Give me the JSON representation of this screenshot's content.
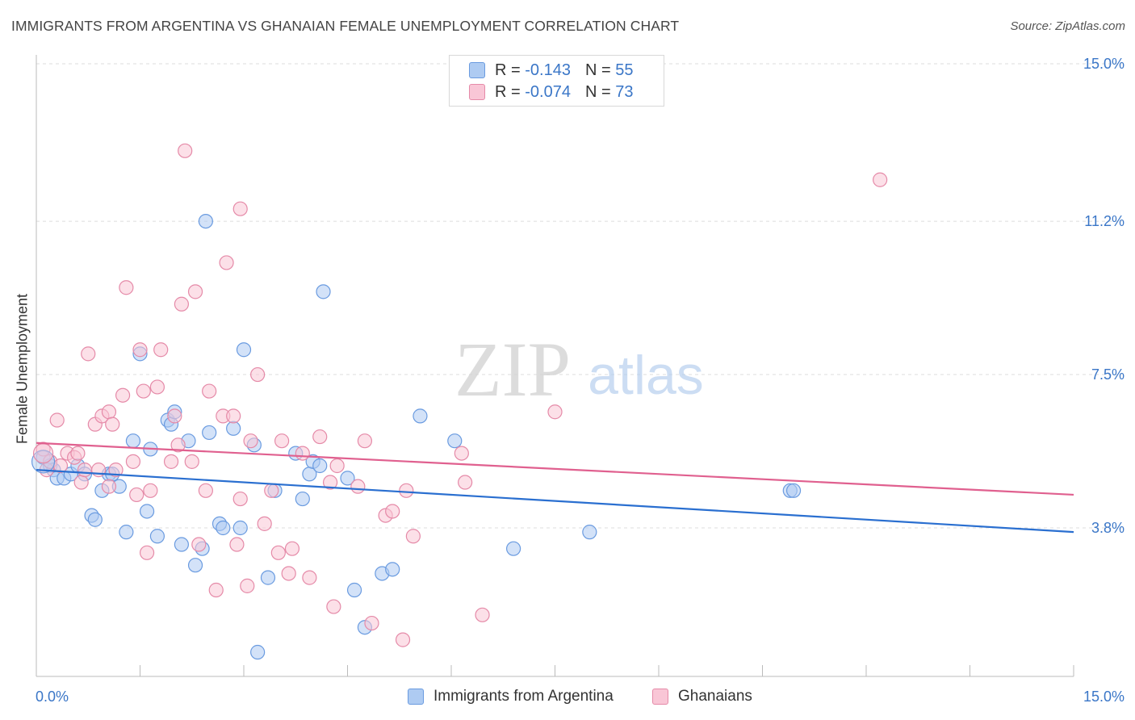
{
  "title": "IMMIGRANTS FROM ARGENTINA VS GHANAIAN FEMALE UNEMPLOYMENT CORRELATION CHART",
  "source": "Source: ZipAtlas.com",
  "watermark": {
    "zip": "ZIP",
    "atlas": "atlas"
  },
  "legend": {
    "rows": [
      {
        "r_label": "R =",
        "r_value": "-0.143",
        "n_label": "N =",
        "n_value": "55",
        "color": "#aecbf2",
        "border": "#6a9be0"
      },
      {
        "r_label": "R =",
        "r_value": "-0.074",
        "n_label": "N =",
        "n_value": "73",
        "color": "#f9c6d6",
        "border": "#e58aa8"
      }
    ]
  },
  "chart_data": {
    "type": "scatter",
    "title": "IMMIGRANTS FROM ARGENTINA VS GHANAIAN FEMALE UNEMPLOYMENT CORRELATION CHART",
    "xlabel": "",
    "ylabel": "Female Unemployment",
    "xlim": [
      0,
      15
    ],
    "ylim": [
      0,
      15.5
    ],
    "x_tick_labels": [
      "0.0%",
      "15.0%"
    ],
    "y_ticks": [
      3.8,
      7.5,
      11.2,
      15.0
    ],
    "y_tick_labels": [
      "3.8%",
      "7.5%",
      "11.2%",
      "15.0%"
    ],
    "grid": true,
    "legend_position": "top-center",
    "series": [
      {
        "name": "Immigrants from Argentina",
        "color": "#6a9be0",
        "fill": "#aecbf2",
        "trend": {
          "x": [
            0,
            15
          ],
          "y": [
            5.2,
            3.7
          ],
          "color": "#2a6fd0"
        },
        "points": [
          [
            0.1,
            5.5
          ],
          [
            0.2,
            5.3
          ],
          [
            0.25,
            5.2
          ],
          [
            0.3,
            5.0
          ],
          [
            0.4,
            5.0
          ],
          [
            0.5,
            5.1
          ],
          [
            0.6,
            5.3
          ],
          [
            0.7,
            5.1
          ],
          [
            0.8,
            4.1
          ],
          [
            0.85,
            4.0
          ],
          [
            0.95,
            4.7
          ],
          [
            1.05,
            5.1
          ],
          [
            1.1,
            5.1
          ],
          [
            1.2,
            4.8
          ],
          [
            1.3,
            3.7
          ],
          [
            1.4,
            5.9
          ],
          [
            1.5,
            8.0
          ],
          [
            1.6,
            4.2
          ],
          [
            1.65,
            5.7
          ],
          [
            1.75,
            3.6
          ],
          [
            1.9,
            6.4
          ],
          [
            1.95,
            6.3
          ],
          [
            2.0,
            6.6
          ],
          [
            2.1,
            3.4
          ],
          [
            2.2,
            5.9
          ],
          [
            2.3,
            2.9
          ],
          [
            2.4,
            3.3
          ],
          [
            2.45,
            11.2
          ],
          [
            2.5,
            6.1
          ],
          [
            2.65,
            3.9
          ],
          [
            2.7,
            3.8
          ],
          [
            2.85,
            6.2
          ],
          [
            2.95,
            3.8
          ],
          [
            3.0,
            8.1
          ],
          [
            3.15,
            5.8
          ],
          [
            3.2,
            0.8
          ],
          [
            3.35,
            2.6
          ],
          [
            3.45,
            4.7
          ],
          [
            3.75,
            5.6
          ],
          [
            3.85,
            4.5
          ],
          [
            3.95,
            5.1
          ],
          [
            4.0,
            5.4
          ],
          [
            4.1,
            5.3
          ],
          [
            4.15,
            9.5
          ],
          [
            4.5,
            5.0
          ],
          [
            4.6,
            2.3
          ],
          [
            4.75,
            1.4
          ],
          [
            5.0,
            2.7
          ],
          [
            5.15,
            2.8
          ],
          [
            5.55,
            6.5
          ],
          [
            6.05,
            5.9
          ],
          [
            6.9,
            3.3
          ],
          [
            8.0,
            3.7
          ],
          [
            10.9,
            4.7
          ],
          [
            10.95,
            4.7
          ]
        ]
      },
      {
        "name": "Ghanaians",
        "color": "#e58aa8",
        "fill": "#f9c6d6",
        "trend": {
          "x": [
            0,
            15
          ],
          "y": [
            5.85,
            4.6
          ],
          "color": "#e0608f"
        },
        "points": [
          [
            0.1,
            5.7
          ],
          [
            0.15,
            5.2
          ],
          [
            0.2,
            5.4
          ],
          [
            0.3,
            6.4
          ],
          [
            0.35,
            5.3
          ],
          [
            0.45,
            5.6
          ],
          [
            0.55,
            5.5
          ],
          [
            0.6,
            5.6
          ],
          [
            0.65,
            4.9
          ],
          [
            0.7,
            5.2
          ],
          [
            0.75,
            8.0
          ],
          [
            0.85,
            6.3
          ],
          [
            0.9,
            5.2
          ],
          [
            0.95,
            6.5
          ],
          [
            1.05,
            6.6
          ],
          [
            1.1,
            6.3
          ],
          [
            1.15,
            5.2
          ],
          [
            1.25,
            7.0
          ],
          [
            1.3,
            9.6
          ],
          [
            1.4,
            5.4
          ],
          [
            1.45,
            4.6
          ],
          [
            1.5,
            8.1
          ],
          [
            1.55,
            7.1
          ],
          [
            1.6,
            3.2
          ],
          [
            1.65,
            4.7
          ],
          [
            1.75,
            7.2
          ],
          [
            1.8,
            8.1
          ],
          [
            1.95,
            5.4
          ],
          [
            2.0,
            6.5
          ],
          [
            2.05,
            5.8
          ],
          [
            2.1,
            9.2
          ],
          [
            2.15,
            12.9
          ],
          [
            2.25,
            5.4
          ],
          [
            2.3,
            9.5
          ],
          [
            2.35,
            3.4
          ],
          [
            2.45,
            4.7
          ],
          [
            2.5,
            7.1
          ],
          [
            2.6,
            2.3
          ],
          [
            2.7,
            6.5
          ],
          [
            2.75,
            10.2
          ],
          [
            2.85,
            6.5
          ],
          [
            2.9,
            3.4
          ],
          [
            2.95,
            11.5
          ],
          [
            3.05,
            2.4
          ],
          [
            3.1,
            5.9
          ],
          [
            3.2,
            7.5
          ],
          [
            3.3,
            3.9
          ],
          [
            3.4,
            4.7
          ],
          [
            3.5,
            3.2
          ],
          [
            3.55,
            5.9
          ],
          [
            3.65,
            2.7
          ],
          [
            3.7,
            3.3
          ],
          [
            3.85,
            5.6
          ],
          [
            3.95,
            2.6
          ],
          [
            4.1,
            6.0
          ],
          [
            4.25,
            4.9
          ],
          [
            4.3,
            1.9
          ],
          [
            4.35,
            5.3
          ],
          [
            4.75,
            5.9
          ],
          [
            4.85,
            1.5
          ],
          [
            5.05,
            4.1
          ],
          [
            5.15,
            4.2
          ],
          [
            5.3,
            1.1
          ],
          [
            5.35,
            4.7
          ],
          [
            5.45,
            3.6
          ],
          [
            6.15,
            5.6
          ],
          [
            6.2,
            4.9
          ],
          [
            6.45,
            1.7
          ],
          [
            7.5,
            6.6
          ],
          [
            12.2,
            12.2
          ],
          [
            4.65,
            4.8
          ],
          [
            2.95,
            4.5
          ],
          [
            1.05,
            4.8
          ]
        ]
      }
    ]
  },
  "bottom_legend": [
    {
      "label": "Immigrants from Argentina",
      "color": "#aecbf2",
      "border": "#6a9be0"
    },
    {
      "label": "Ghanaians",
      "color": "#f9c6d6",
      "border": "#e58aa8"
    }
  ]
}
